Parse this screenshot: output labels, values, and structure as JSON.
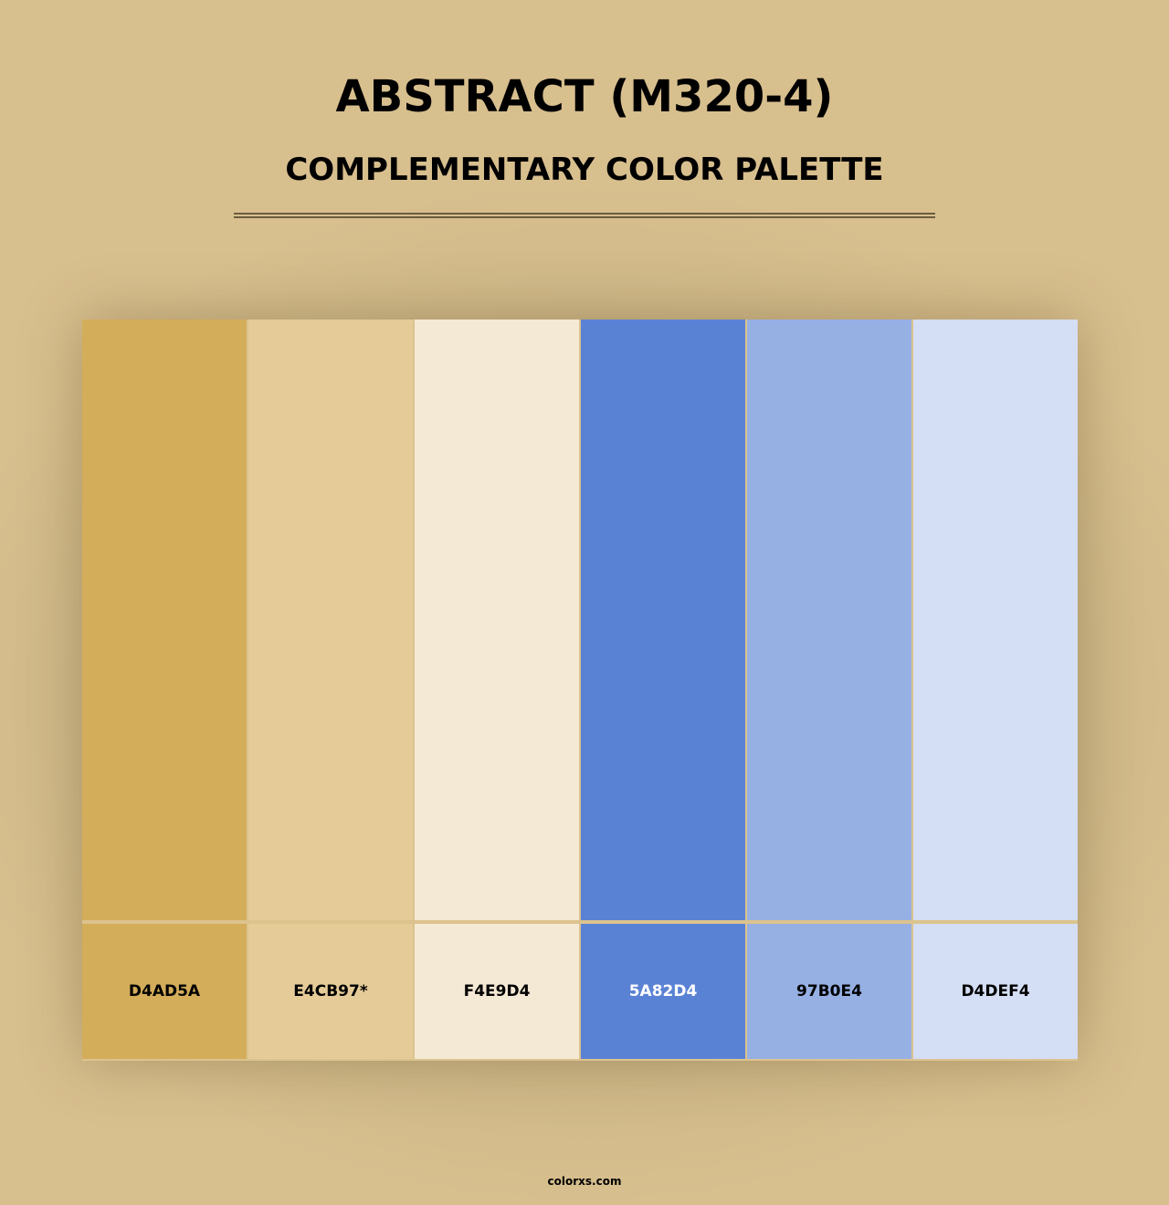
{
  "header": {
    "title": "ABSTRACT (M320-4)",
    "subtitle": "COMPLEMENTARY COLOR PALETTE"
  },
  "palette": [
    {
      "hex": "D4AD5A",
      "color": "#D4AD5A",
      "text_color": "#000000"
    },
    {
      "hex": "E4CB97*",
      "color": "#E4CB97",
      "text_color": "#000000"
    },
    {
      "hex": "F4E9D4",
      "color": "#F4E9D4",
      "text_color": "#000000"
    },
    {
      "hex": "5A82D4",
      "color": "#5A82D4",
      "text_color": "#FFFFFF"
    },
    {
      "hex": "97B0E4",
      "color": "#97B0E4",
      "text_color": "#000000"
    },
    {
      "hex": "D4DEF4",
      "color": "#D4DEF4",
      "text_color": "#000000"
    }
  ],
  "footer": {
    "site": "colorxs.com"
  }
}
